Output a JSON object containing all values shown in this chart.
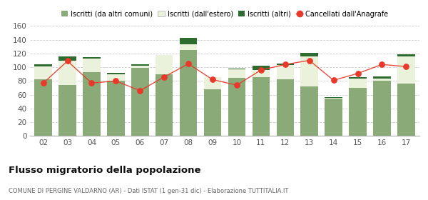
{
  "years": [
    "02",
    "03",
    "04",
    "05",
    "06",
    "07",
    "08",
    "09",
    "10",
    "11",
    "12",
    "13",
    "14",
    "15",
    "16",
    "17"
  ],
  "iscritti_altri_comuni": [
    83,
    74,
    93,
    80,
    99,
    90,
    125,
    68,
    85,
    86,
    83,
    72,
    54,
    70,
    80,
    76
  ],
  "iscritti_estero": [
    18,
    35,
    20,
    10,
    3,
    28,
    8,
    18,
    12,
    10,
    20,
    44,
    1,
    14,
    4,
    40
  ],
  "iscritti_altri": [
    3,
    7,
    2,
    2,
    2,
    0,
    10,
    0,
    1,
    6,
    2,
    5,
    2,
    2,
    3,
    3
  ],
  "cancellati": [
    77,
    109,
    77,
    80,
    66,
    86,
    105,
    82,
    74,
    96,
    104,
    110,
    81,
    91,
    104,
    101
  ],
  "color_altri_comuni": "#8aaa78",
  "color_estero": "#eaf2dc",
  "color_altri": "#2e6b2e",
  "color_cancellati": "#e8392a",
  "ylim": [
    0,
    160
  ],
  "yticks": [
    0,
    20,
    40,
    60,
    80,
    100,
    120,
    140,
    160
  ],
  "title": "Flusso migratorio della popolazione",
  "subtitle": "COMUNE DI PERGINE VALDARNO (AR) - Dati ISTAT (1 gen-31 dic) - Elaborazione TUTTITALIA.IT",
  "legend_labels": [
    "Iscritti (da altri comuni)",
    "Iscritti (dall'estero)",
    "Iscritti (altri)",
    "Cancellati dall'Anagrafe"
  ],
  "background_color": "#ffffff",
  "grid_color": "#cccccc"
}
